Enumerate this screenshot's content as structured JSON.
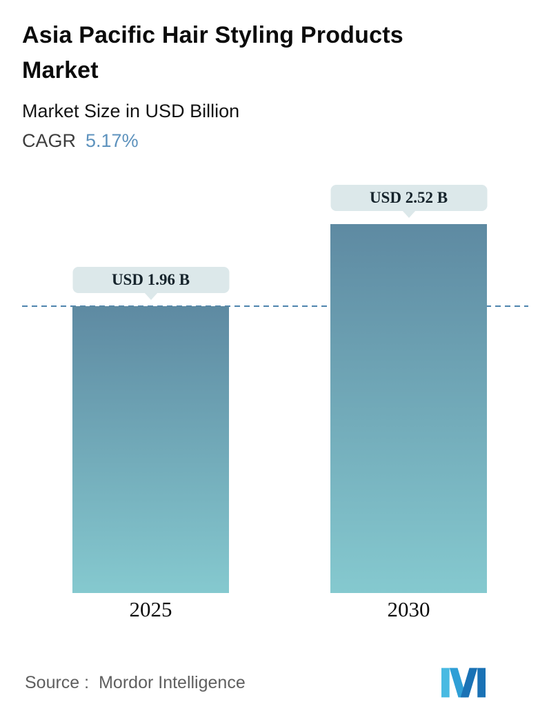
{
  "header": {
    "title": "Asia Pacific Hair Styling Products Market",
    "subtitle": "Market Size in USD Billion",
    "cagr_label": "CAGR",
    "cagr_value": "5.17%"
  },
  "chart_data": {
    "type": "bar",
    "title": "Asia Pacific Hair Styling Products Market",
    "subtitle": "Market Size in USD Billion",
    "unit": "USD Billion",
    "categories": [
      "2025",
      "2030"
    ],
    "values": [
      1.96,
      2.52
    ],
    "value_labels": [
      "USD 1.96 B",
      "USD 2.52 B"
    ],
    "cagr": "5.17%",
    "ylim": [
      0,
      2.52
    ],
    "grid": false,
    "legend": false,
    "annotations": [
      "Dashed horizontal reference line at the 2025 value (USD 1.96 B) spanning the full plot width"
    ]
  },
  "footer": {
    "source_label": "Source :",
    "source_name": "Mordor Intelligence",
    "logo_name": "mordor-intelligence-logo"
  },
  "colors": {
    "bar_gradient_top": "#5e8aa2",
    "bar_gradient_bottom": "#85c9cf",
    "pill_bg": "#dce8ea",
    "pill_text": "#16242c",
    "dash_line": "#4d84ad",
    "cagr_accent": "#5d92bd",
    "source_text": "#5f5f5f",
    "logo_light": "#49bae2",
    "logo_mid": "#2f9fd6",
    "logo_dark": "#1a72b5"
  }
}
